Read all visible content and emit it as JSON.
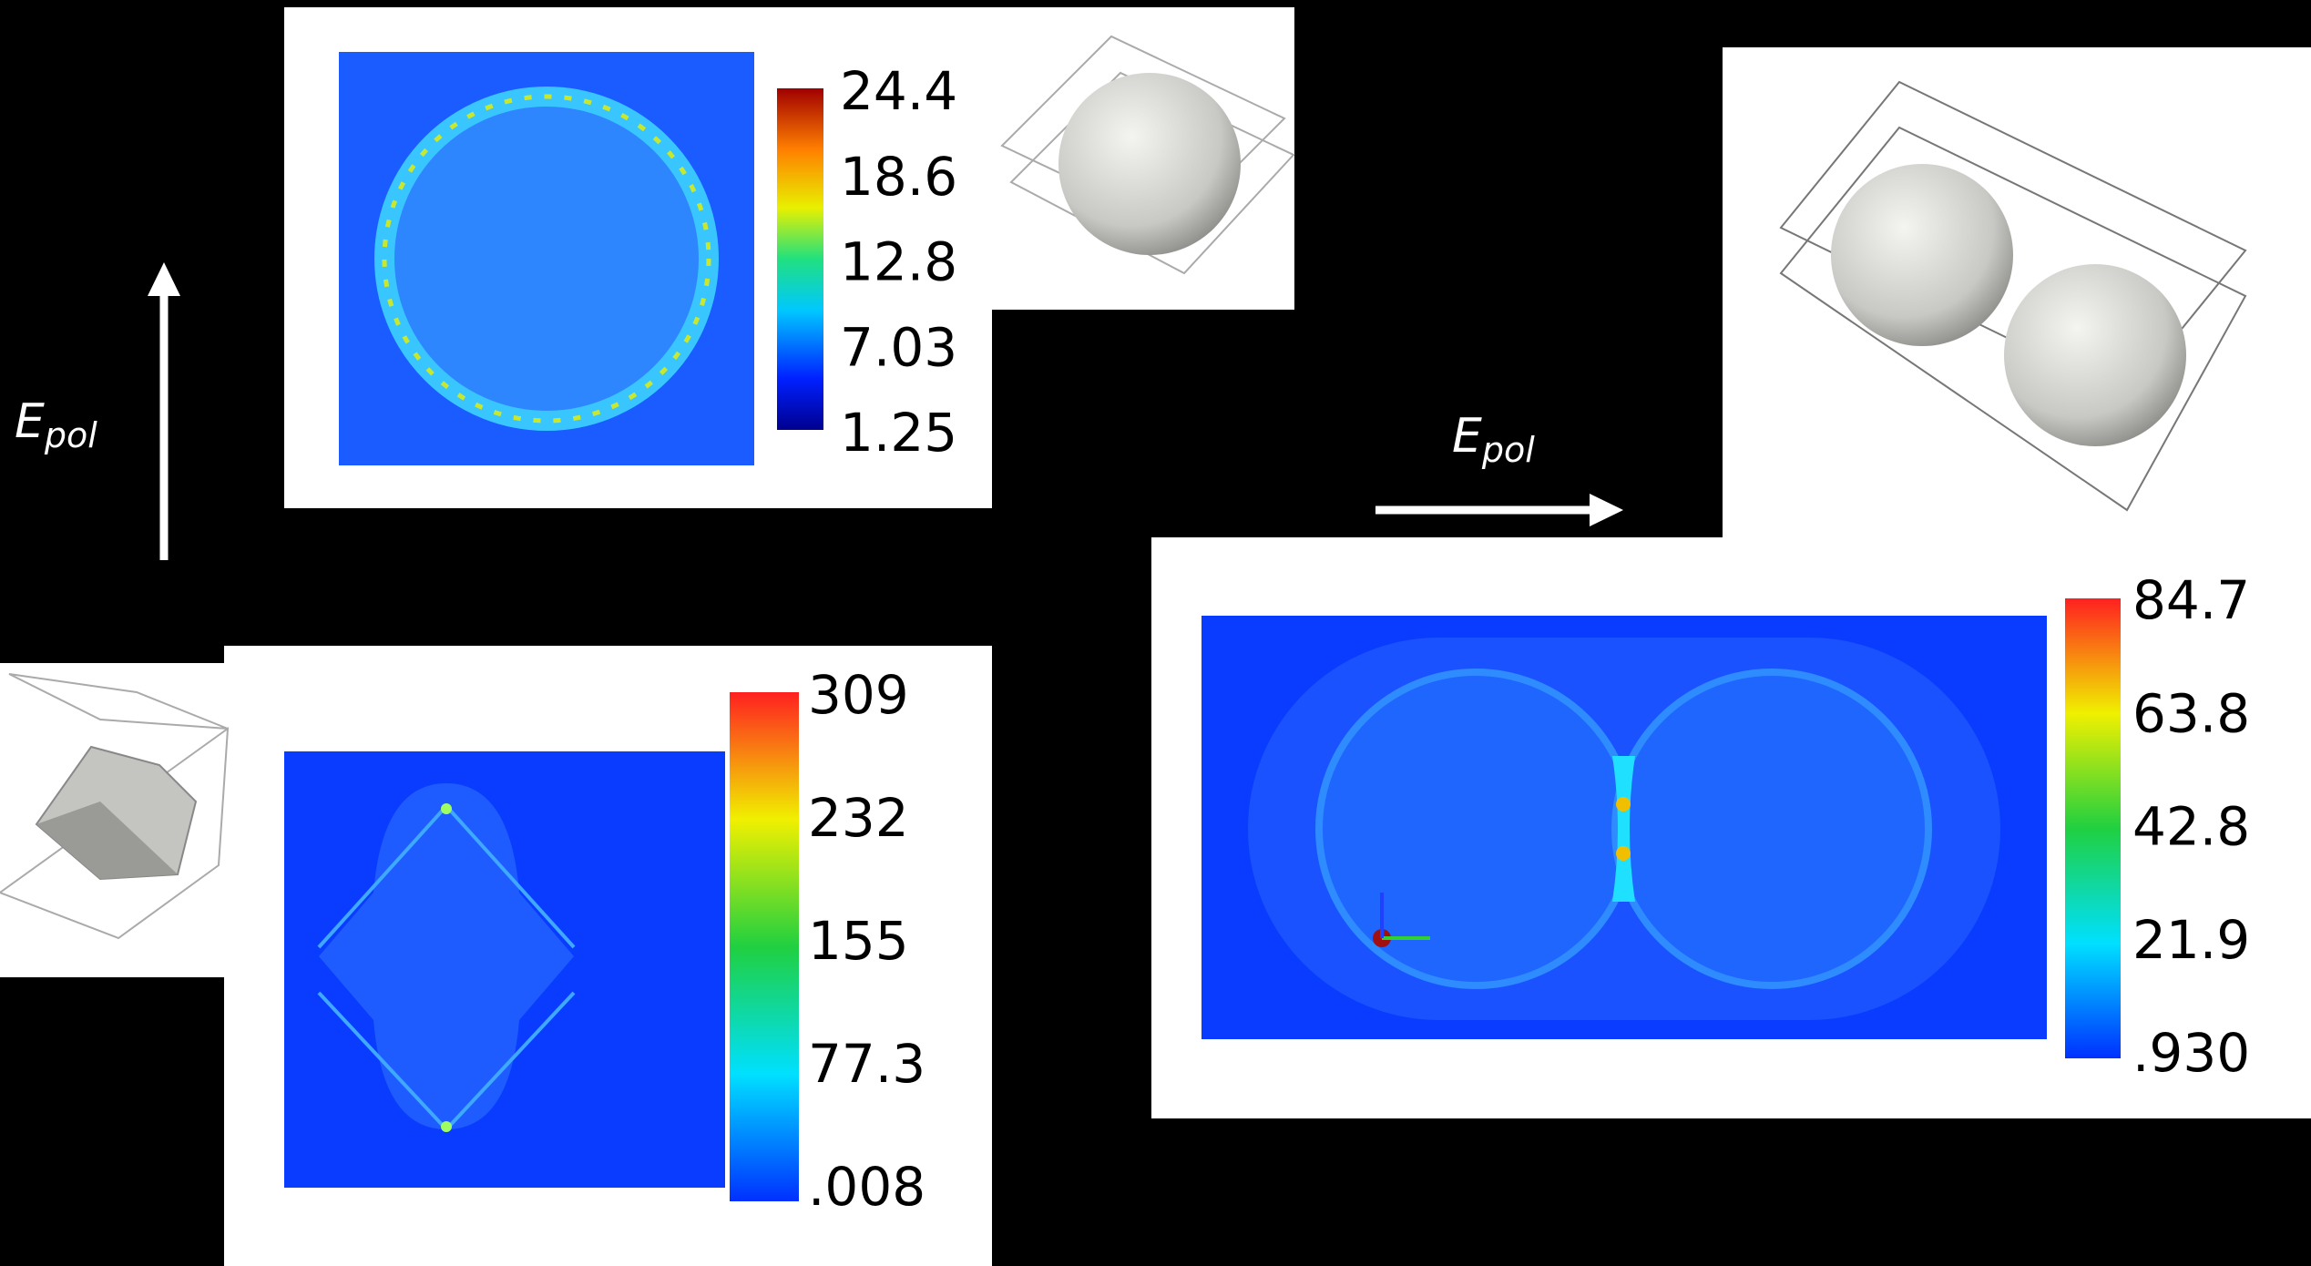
{
  "panels": [
    {
      "colorbar_labels": [
        "24.4",
        "18.6",
        "12.8",
        "7.03",
        "1.25"
      ]
    },
    {
      "colorbar_labels": [
        "309",
        "232",
        "155",
        "77.3",
        ".008"
      ]
    },
    {
      "colorbar_labels": [
        "84.7",
        "63.8",
        "42.8",
        "21.9",
        ".930"
      ]
    }
  ],
  "annotations": [
    {
      "symbol": "E",
      "subscript": "pol"
    },
    {
      "symbol": "E",
      "subscript": "pol"
    }
  ]
}
